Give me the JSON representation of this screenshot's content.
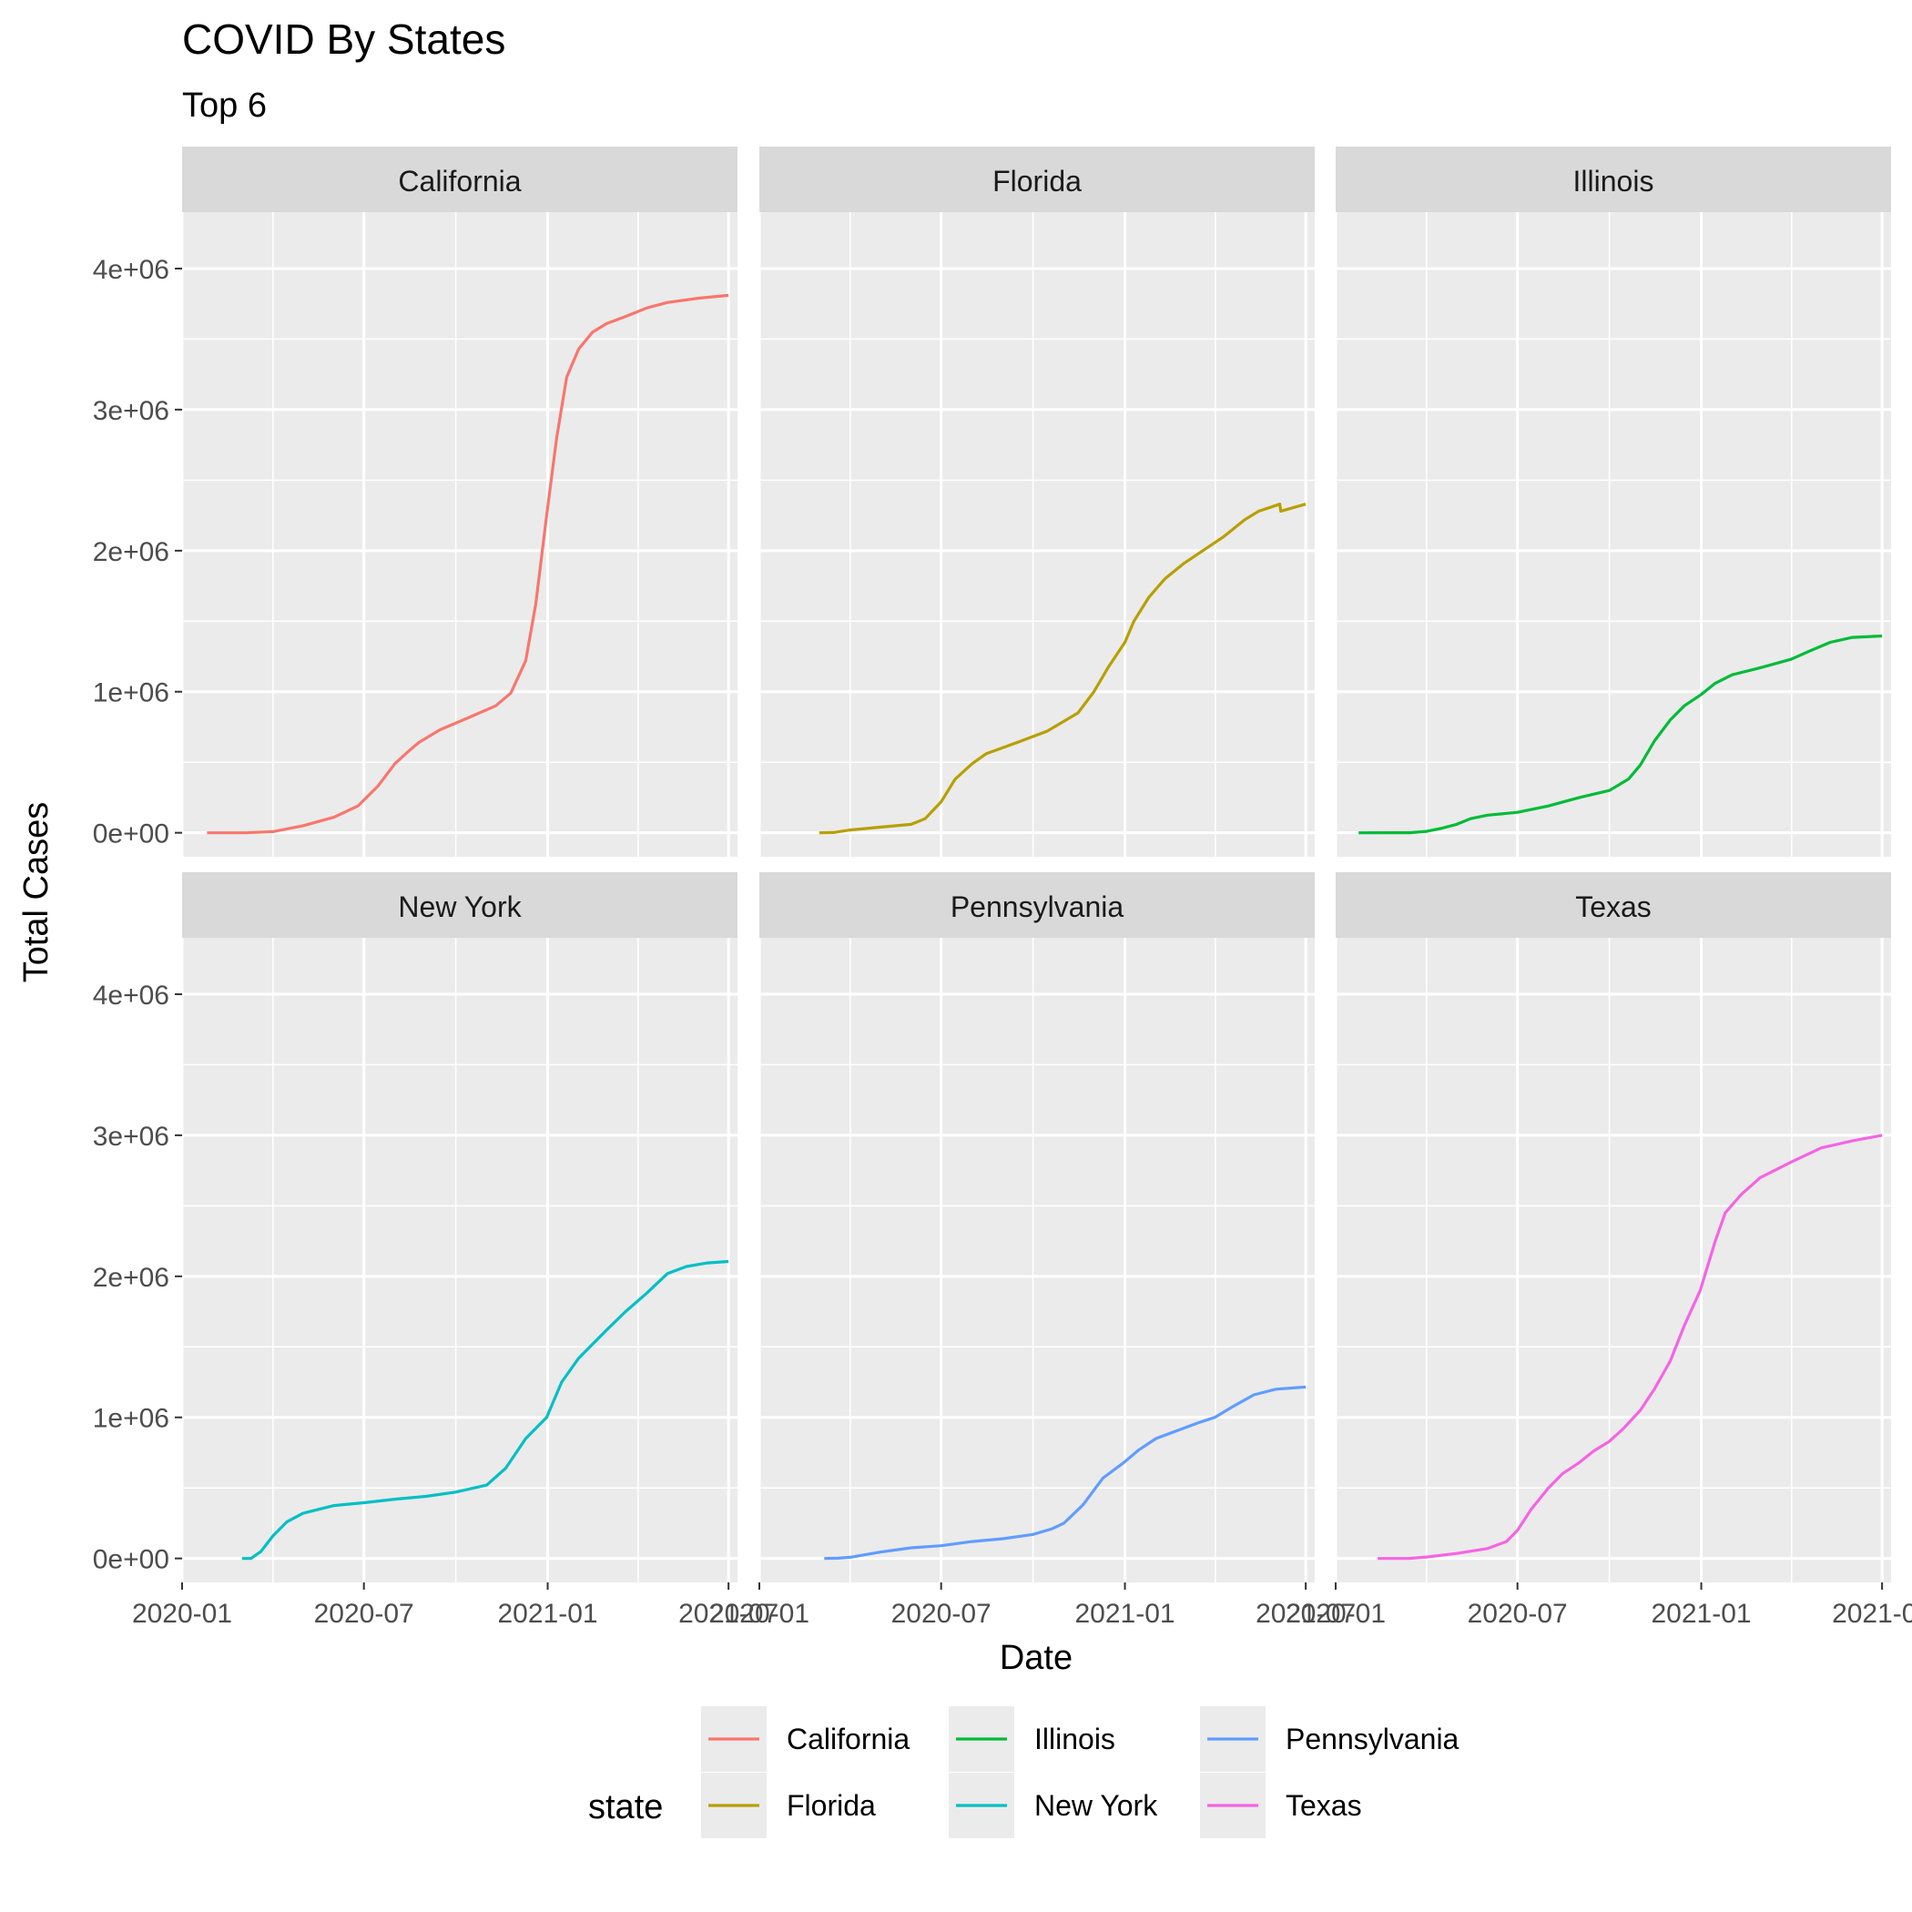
{
  "chart_data": {
    "type": "line",
    "title": "COVID By States",
    "subtitle": "Top 6",
    "xlabel": "Date",
    "ylabel": "Total Cases",
    "x_ticks": [
      "2020-01",
      "2020-07",
      "2021-01",
      "2021-07"
    ],
    "x_range": [
      "2020-01-01",
      "2021-07-10"
    ],
    "y_ticks": [
      0,
      1000000,
      2000000,
      3000000,
      4000000
    ],
    "y_tick_labels": [
      "0e+00",
      "1e+06",
      "2e+06",
      "3e+06",
      "4e+06"
    ],
    "ylim": [
      -170000,
      4400000
    ],
    "grid": true,
    "facet_layout": "3 columns x 2 rows",
    "legend": {
      "title": "state",
      "position": "bottom"
    },
    "series": [
      {
        "name": "California",
        "color": "#F8766D",
        "points": [
          [
            "2020-01-26",
            0
          ],
          [
            "2020-03-05",
            0
          ],
          [
            "2020-04-01",
            8000
          ],
          [
            "2020-05-01",
            50000
          ],
          [
            "2020-06-01",
            110000
          ],
          [
            "2020-06-25",
            190000
          ],
          [
            "2020-07-15",
            330000
          ],
          [
            "2020-08-01",
            490000
          ],
          [
            "2020-08-15",
            580000
          ],
          [
            "2020-08-25",
            640000
          ],
          [
            "2020-09-15",
            730000
          ],
          [
            "2020-10-15",
            820000
          ],
          [
            "2020-11-10",
            900000
          ],
          [
            "2020-11-25",
            990000
          ],
          [
            "2020-12-10",
            1220000
          ],
          [
            "2020-12-20",
            1620000
          ],
          [
            "2020-12-31",
            2250000
          ],
          [
            "2021-01-10",
            2800000
          ],
          [
            "2021-01-20",
            3230000
          ],
          [
            "2021-02-01",
            3430000
          ],
          [
            "2021-02-15",
            3550000
          ],
          [
            "2021-03-01",
            3610000
          ],
          [
            "2021-03-20",
            3660000
          ],
          [
            "2021-04-10",
            3720000
          ],
          [
            "2021-05-01",
            3760000
          ],
          [
            "2021-06-01",
            3790000
          ],
          [
            "2021-07-01",
            3810000
          ]
        ]
      },
      {
        "name": "Florida",
        "color": "#B79F00",
        "points": [
          [
            "2020-03-01",
            0
          ],
          [
            "2020-03-15",
            2000
          ],
          [
            "2020-04-01",
            20000
          ],
          [
            "2020-05-01",
            40000
          ],
          [
            "2020-06-01",
            60000
          ],
          [
            "2020-06-15",
            100000
          ],
          [
            "2020-07-01",
            220000
          ],
          [
            "2020-07-15",
            380000
          ],
          [
            "2020-08-01",
            490000
          ],
          [
            "2020-08-15",
            560000
          ],
          [
            "2020-09-15",
            640000
          ],
          [
            "2020-10-15",
            720000
          ],
          [
            "2020-11-15",
            850000
          ],
          [
            "2020-12-01",
            1000000
          ],
          [
            "2020-12-15",
            1170000
          ],
          [
            "2021-01-01",
            1350000
          ],
          [
            "2021-01-10",
            1500000
          ],
          [
            "2021-01-25",
            1670000
          ],
          [
            "2021-02-10",
            1800000
          ],
          [
            "2021-03-01",
            1910000
          ],
          [
            "2021-03-20",
            2000000
          ],
          [
            "2021-04-10",
            2100000
          ],
          [
            "2021-05-01",
            2220000
          ],
          [
            "2021-05-15",
            2280000
          ],
          [
            "2021-06-01",
            2320000
          ],
          [
            "2021-06-05",
            2330000
          ],
          [
            "2021-06-06",
            2280000
          ],
          [
            "2021-07-01",
            2330000
          ]
        ]
      },
      {
        "name": "Illinois",
        "color": "#00BA38",
        "points": [
          [
            "2020-01-24",
            0
          ],
          [
            "2020-03-15",
            200
          ],
          [
            "2020-04-01",
            10000
          ],
          [
            "2020-04-15",
            30000
          ],
          [
            "2020-05-01",
            60000
          ],
          [
            "2020-05-15",
            100000
          ],
          [
            "2020-06-01",
            125000
          ],
          [
            "2020-07-01",
            145000
          ],
          [
            "2020-08-01",
            190000
          ],
          [
            "2020-09-01",
            250000
          ],
          [
            "2020-10-01",
            300000
          ],
          [
            "2020-10-20",
            380000
          ],
          [
            "2020-11-01",
            480000
          ],
          [
            "2020-11-15",
            650000
          ],
          [
            "2020-12-01",
            800000
          ],
          [
            "2020-12-15",
            900000
          ],
          [
            "2021-01-01",
            980000
          ],
          [
            "2021-01-15",
            1060000
          ],
          [
            "2021-02-01",
            1120000
          ],
          [
            "2021-03-01",
            1170000
          ],
          [
            "2021-04-01",
            1230000
          ],
          [
            "2021-04-20",
            1290000
          ],
          [
            "2021-05-10",
            1350000
          ],
          [
            "2021-06-01",
            1385000
          ],
          [
            "2021-07-01",
            1395000
          ]
        ]
      },
      {
        "name": "New York",
        "color": "#00BFC4",
        "points": [
          [
            "2020-03-01",
            0
          ],
          [
            "2020-03-10",
            0
          ],
          [
            "2020-03-20",
            50000
          ],
          [
            "2020-04-01",
            160000
          ],
          [
            "2020-04-15",
            260000
          ],
          [
            "2020-05-01",
            320000
          ],
          [
            "2020-06-01",
            375000
          ],
          [
            "2020-07-01",
            395000
          ],
          [
            "2020-08-01",
            420000
          ],
          [
            "2020-09-01",
            440000
          ],
          [
            "2020-10-01",
            470000
          ],
          [
            "2020-11-01",
            520000
          ],
          [
            "2020-11-20",
            640000
          ],
          [
            "2020-12-10",
            850000
          ],
          [
            "2020-12-31",
            1000000
          ],
          [
            "2021-01-15",
            1250000
          ],
          [
            "2021-02-01",
            1420000
          ],
          [
            "2021-02-15",
            1520000
          ],
          [
            "2021-03-01",
            1620000
          ],
          [
            "2021-03-20",
            1750000
          ],
          [
            "2021-04-10",
            1880000
          ],
          [
            "2021-05-01",
            2020000
          ],
          [
            "2021-05-20",
            2070000
          ],
          [
            "2021-06-10",
            2095000
          ],
          [
            "2021-07-01",
            2105000
          ]
        ]
      },
      {
        "name": "Pennsylvania",
        "color": "#619CFF",
        "points": [
          [
            "2020-03-06",
            0
          ],
          [
            "2020-03-20",
            2000
          ],
          [
            "2020-04-01",
            8000
          ],
          [
            "2020-05-01",
            45000
          ],
          [
            "2020-06-01",
            75000
          ],
          [
            "2020-07-01",
            90000
          ],
          [
            "2020-08-01",
            120000
          ],
          [
            "2020-09-01",
            140000
          ],
          [
            "2020-10-01",
            170000
          ],
          [
            "2020-10-20",
            210000
          ],
          [
            "2020-11-01",
            250000
          ],
          [
            "2020-11-20",
            380000
          ],
          [
            "2020-12-10",
            570000
          ],
          [
            "2020-12-31",
            680000
          ],
          [
            "2021-01-15",
            770000
          ],
          [
            "2021-02-01",
            850000
          ],
          [
            "2021-02-20",
            900000
          ],
          [
            "2021-03-15",
            960000
          ],
          [
            "2021-04-01",
            1000000
          ],
          [
            "2021-04-20",
            1080000
          ],
          [
            "2021-05-10",
            1160000
          ],
          [
            "2021-06-01",
            1200000
          ],
          [
            "2021-07-01",
            1215000
          ]
        ]
      },
      {
        "name": "Texas",
        "color": "#F564E3",
        "points": [
          [
            "2020-02-12",
            0
          ],
          [
            "2020-03-15",
            200
          ],
          [
            "2020-04-01",
            10000
          ],
          [
            "2020-05-01",
            35000
          ],
          [
            "2020-06-01",
            70000
          ],
          [
            "2020-06-20",
            120000
          ],
          [
            "2020-07-01",
            200000
          ],
          [
            "2020-07-15",
            350000
          ],
          [
            "2020-08-01",
            500000
          ],
          [
            "2020-08-15",
            600000
          ],
          [
            "2020-09-01",
            680000
          ],
          [
            "2020-09-15",
            760000
          ],
          [
            "2020-10-01",
            830000
          ],
          [
            "2020-10-15",
            920000
          ],
          [
            "2020-11-01",
            1050000
          ],
          [
            "2020-11-15",
            1200000
          ],
          [
            "2020-12-01",
            1400000
          ],
          [
            "2020-12-15",
            1650000
          ],
          [
            "2020-12-31",
            1900000
          ],
          [
            "2021-01-15",
            2250000
          ],
          [
            "2021-01-25",
            2450000
          ],
          [
            "2021-02-10",
            2580000
          ],
          [
            "2021-03-01",
            2700000
          ],
          [
            "2021-04-01",
            2810000
          ],
          [
            "2021-05-01",
            2910000
          ],
          [
            "2021-06-01",
            2960000
          ],
          [
            "2021-07-01",
            3000000
          ]
        ]
      }
    ]
  }
}
